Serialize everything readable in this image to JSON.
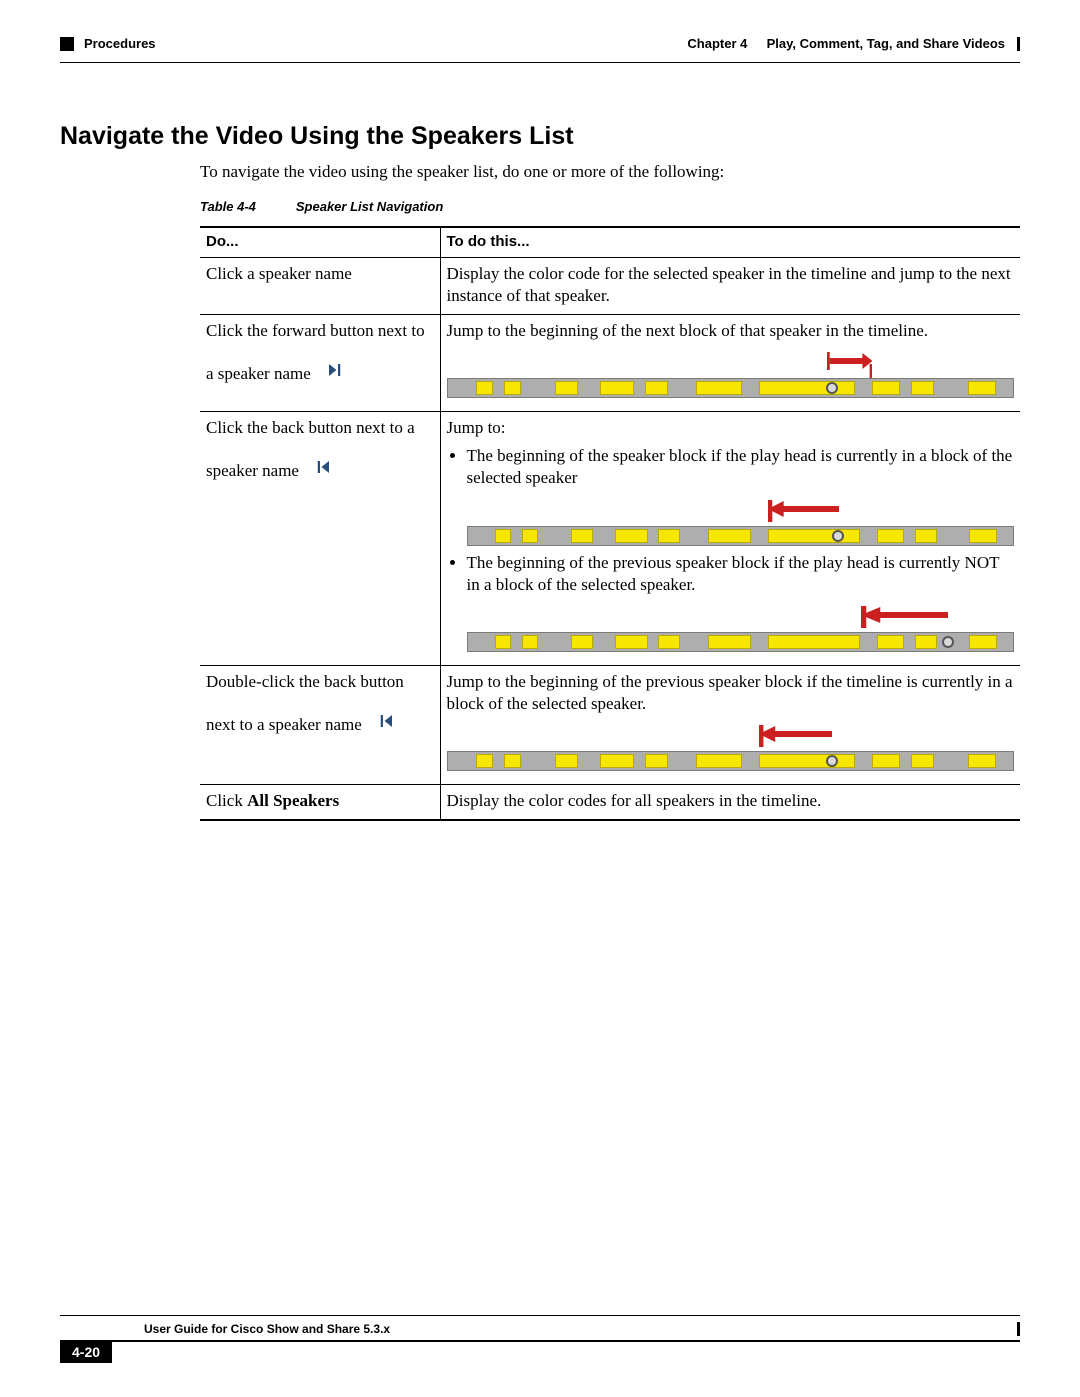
{
  "header": {
    "chapter_label": "Chapter 4",
    "chapter_title": "Play, Comment, Tag, and Share Videos",
    "breadcrumb": "Procedures"
  },
  "section_title": "Navigate the Video Using the Speakers List",
  "intro_text": "To navigate the video using the speaker list, do one or more of the following:",
  "table_caption_num": "Table 4-4",
  "table_caption_title": "Speaker List Navigation",
  "headers": {
    "do": "Do...",
    "to": "To do this..."
  },
  "rows": {
    "r1": {
      "do": "Click a speaker name",
      "to": "Display the color code for the selected speaker in the timeline and jump to the next instance of that speaker."
    },
    "r2": {
      "do": "Click the forward button next to a speaker name",
      "to": "Jump to the beginning of the next block of that speaker in the timeline."
    },
    "r3": {
      "do": "Click the back button next to a speaker name",
      "to_lead": "Jump to:",
      "bullet1": "The beginning of the speaker block if the play head is currently in a block of the selected speaker",
      "bullet2": "The beginning of the previous speaker block if the play head is currently NOT in a block of the selected speaker."
    },
    "r4": {
      "do": "Double-click the back button next to a speaker name",
      "to": "Jump to the beginning of the previous speaker block if the timeline is currently in a block of the selected speaker."
    },
    "r5": {
      "do_pre": "Click ",
      "do_bold": "All Speakers",
      "to": "Display the color codes for all speakers in the timeline."
    }
  },
  "timeline_style": {
    "bg": "#aeaeae",
    "border": "#7b7b7b",
    "seg_fill": "#f7e600",
    "seg_border": "#b9ab00",
    "arrow_color": "#cc1f1f"
  },
  "timelines": {
    "t1": {
      "segments": [
        {
          "l": 5,
          "w": 3
        },
        {
          "l": 10,
          "w": 3
        },
        {
          "l": 19,
          "w": 4
        },
        {
          "l": 27,
          "w": 6
        },
        {
          "l": 35,
          "w": 4
        },
        {
          "l": 44,
          "w": 8
        },
        {
          "l": 55,
          "w": 17
        },
        {
          "l": 75,
          "w": 5
        },
        {
          "l": 82,
          "w": 4
        },
        {
          "l": 92,
          "w": 5
        }
      ],
      "playhead": 68,
      "arrow": {
        "from": 67,
        "to": 75,
        "dir": "right"
      }
    },
    "t2": {
      "segments": [
        {
          "l": 5,
          "w": 3
        },
        {
          "l": 10,
          "w": 3
        },
        {
          "l": 19,
          "w": 4
        },
        {
          "l": 27,
          "w": 6
        },
        {
          "l": 35,
          "w": 4
        },
        {
          "l": 44,
          "w": 8
        },
        {
          "l": 55,
          "w": 17
        },
        {
          "l": 75,
          "w": 5
        },
        {
          "l": 82,
          "w": 4
        },
        {
          "l": 92,
          "w": 5
        }
      ],
      "playhead": 68,
      "arrow": {
        "from": 68,
        "to": 55,
        "dir": "left"
      }
    },
    "t3": {
      "segments": [
        {
          "l": 5,
          "w": 3
        },
        {
          "l": 10,
          "w": 3
        },
        {
          "l": 19,
          "w": 4
        },
        {
          "l": 27,
          "w": 6
        },
        {
          "l": 35,
          "w": 4
        },
        {
          "l": 44,
          "w": 8
        },
        {
          "l": 55,
          "w": 17
        },
        {
          "l": 75,
          "w": 5
        },
        {
          "l": 82,
          "w": 4
        },
        {
          "l": 92,
          "w": 5
        }
      ],
      "playhead": 88,
      "arrow": {
        "from": 88,
        "to": 72,
        "dir": "left"
      }
    },
    "t4": {
      "segments": [
        {
          "l": 5,
          "w": 3
        },
        {
          "l": 10,
          "w": 3
        },
        {
          "l": 19,
          "w": 4
        },
        {
          "l": 27,
          "w": 6
        },
        {
          "l": 35,
          "w": 4
        },
        {
          "l": 44,
          "w": 8
        },
        {
          "l": 55,
          "w": 17
        },
        {
          "l": 75,
          "w": 5
        },
        {
          "l": 82,
          "w": 4
        },
        {
          "l": 92,
          "w": 5
        }
      ],
      "playhead": 68,
      "arrow": {
        "from": 68,
        "to": 55,
        "dir": "left"
      }
    }
  },
  "footer": {
    "guide_title": "User Guide for Cisco Show and Share 5.3.x",
    "page_number": "4-20"
  }
}
